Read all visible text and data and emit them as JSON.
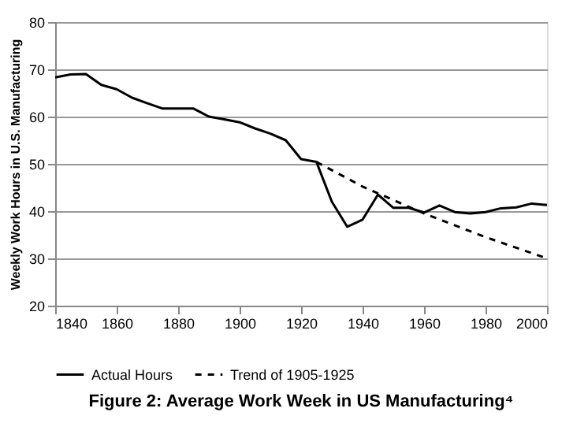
{
  "chart_data": {
    "type": "line",
    "title": "Figure 2: Average Work Week in US Manufacturing⁴",
    "ylabel": "Weekly Work Hours in U.S. Manufacturing",
    "xlim": [
      1840,
      2000
    ],
    "xticks": [
      1840,
      1860,
      1880,
      1900,
      1920,
      1940,
      1960,
      1980,
      2000
    ],
    "ylim": [
      20,
      80
    ],
    "yticks": [
      20,
      30,
      40,
      50,
      60,
      70,
      80
    ],
    "grid": "y",
    "legend": "bottom",
    "series": [
      {
        "name": "Actual Hours",
        "color": "#000000",
        "line_style": "solid",
        "x": [
          1840,
          1845,
          1850,
          1855,
          1860,
          1865,
          1870,
          1875,
          1880,
          1885,
          1890,
          1895,
          1900,
          1905,
          1910,
          1915,
          1920,
          1925,
          1930,
          1935,
          1940,
          1945,
          1950,
          1955,
          1960,
          1965,
          1970,
          1975,
          1980,
          1985,
          1990,
          1995,
          2000
        ],
        "values": [
          68.3,
          68.9,
          69,
          66.7,
          65.8,
          64,
          62.8,
          61.7,
          61.7,
          61.7,
          60,
          59.4,
          58.8,
          57.5,
          56.4,
          55,
          51,
          50.4,
          42,
          36.7,
          38.2,
          43.5,
          40.7,
          40.7,
          39.7,
          41.2,
          39.8,
          39.5,
          39.8,
          40.6,
          40.8,
          41.6,
          41.3
        ]
      },
      {
        "name": "Trend of 1905-1925",
        "color": "#000000",
        "line_style": "dashed",
        "x": [
          1925,
          1940,
          1960,
          1980,
          2000
        ],
        "values": [
          50.4,
          45.2,
          39.5,
          34.5,
          30
        ]
      }
    ]
  }
}
